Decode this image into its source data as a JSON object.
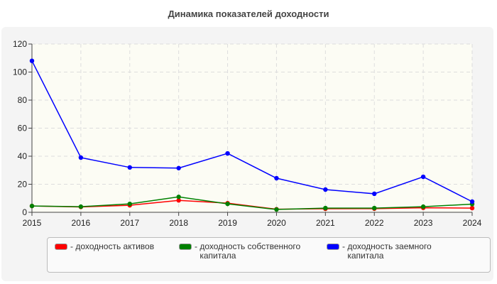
{
  "chart_data": {
    "type": "line",
    "title": "Динамика показателей доходности",
    "x": [
      2015,
      2016,
      2017,
      2018,
      2019,
      2020,
      2021,
      2022,
      2023,
      2024
    ],
    "ylim": [
      0,
      120
    ],
    "yticks": [
      0,
      20,
      40,
      60,
      80,
      100,
      120
    ],
    "grid": true,
    "legend_position": "bottom",
    "series": [
      {
        "name": "доходность активов",
        "color": "#ff0000",
        "values": [
          4.5,
          3.8,
          5,
          8.5,
          6.5,
          2.2,
          2.5,
          2.6,
          3.2,
          3
        ]
      },
      {
        "name": "доходность собственного капитала",
        "color": "#008000",
        "values": [
          4.5,
          4,
          6,
          11,
          6,
          2,
          3,
          3,
          4,
          5.8
        ]
      },
      {
        "name": "доходность заемного капитала",
        "color": "#0000ff",
        "values": [
          108,
          39,
          32,
          31.5,
          42,
          24.3,
          16.2,
          13.2,
          25.3,
          7.6
        ]
      }
    ]
  }
}
